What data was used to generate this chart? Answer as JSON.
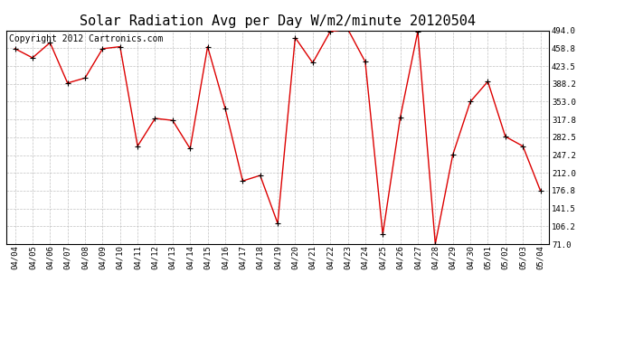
{
  "title": "Solar Radiation Avg per Day W/m2/minute 20120504",
  "copyright_text": "Copyright 2012 Cartronics.com",
  "dates": [
    "04/04",
    "04/05",
    "04/06",
    "04/07",
    "04/08",
    "04/09",
    "04/10",
    "04/11",
    "04/12",
    "04/13",
    "04/14",
    "04/15",
    "04/16",
    "04/17",
    "04/18",
    "04/19",
    "04/20",
    "04/21",
    "04/22",
    "04/23",
    "04/24",
    "04/25",
    "04/26",
    "04/27",
    "04/28",
    "04/29",
    "04/30",
    "05/01",
    "05/02",
    "05/03",
    "05/04"
  ],
  "values": [
    458,
    440,
    470,
    390,
    400,
    458,
    462,
    265,
    320,
    316,
    260,
    462,
    340,
    196,
    207,
    112,
    480,
    430,
    492,
    497,
    432,
    90,
    322,
    492,
    71,
    248,
    353,
    393,
    284,
    265,
    177
  ],
  "line_color": "#dd0000",
  "bg_color": "#ffffff",
  "grid_color": "#bbbbbb",
  "ylim_min": 71.0,
  "ylim_max": 494.0,
  "yticks": [
    71.0,
    106.2,
    141.5,
    176.8,
    212.0,
    247.2,
    282.5,
    317.8,
    353.0,
    388.2,
    423.5,
    458.8,
    494.0
  ],
  "title_fontsize": 11,
  "copyright_fontsize": 7
}
